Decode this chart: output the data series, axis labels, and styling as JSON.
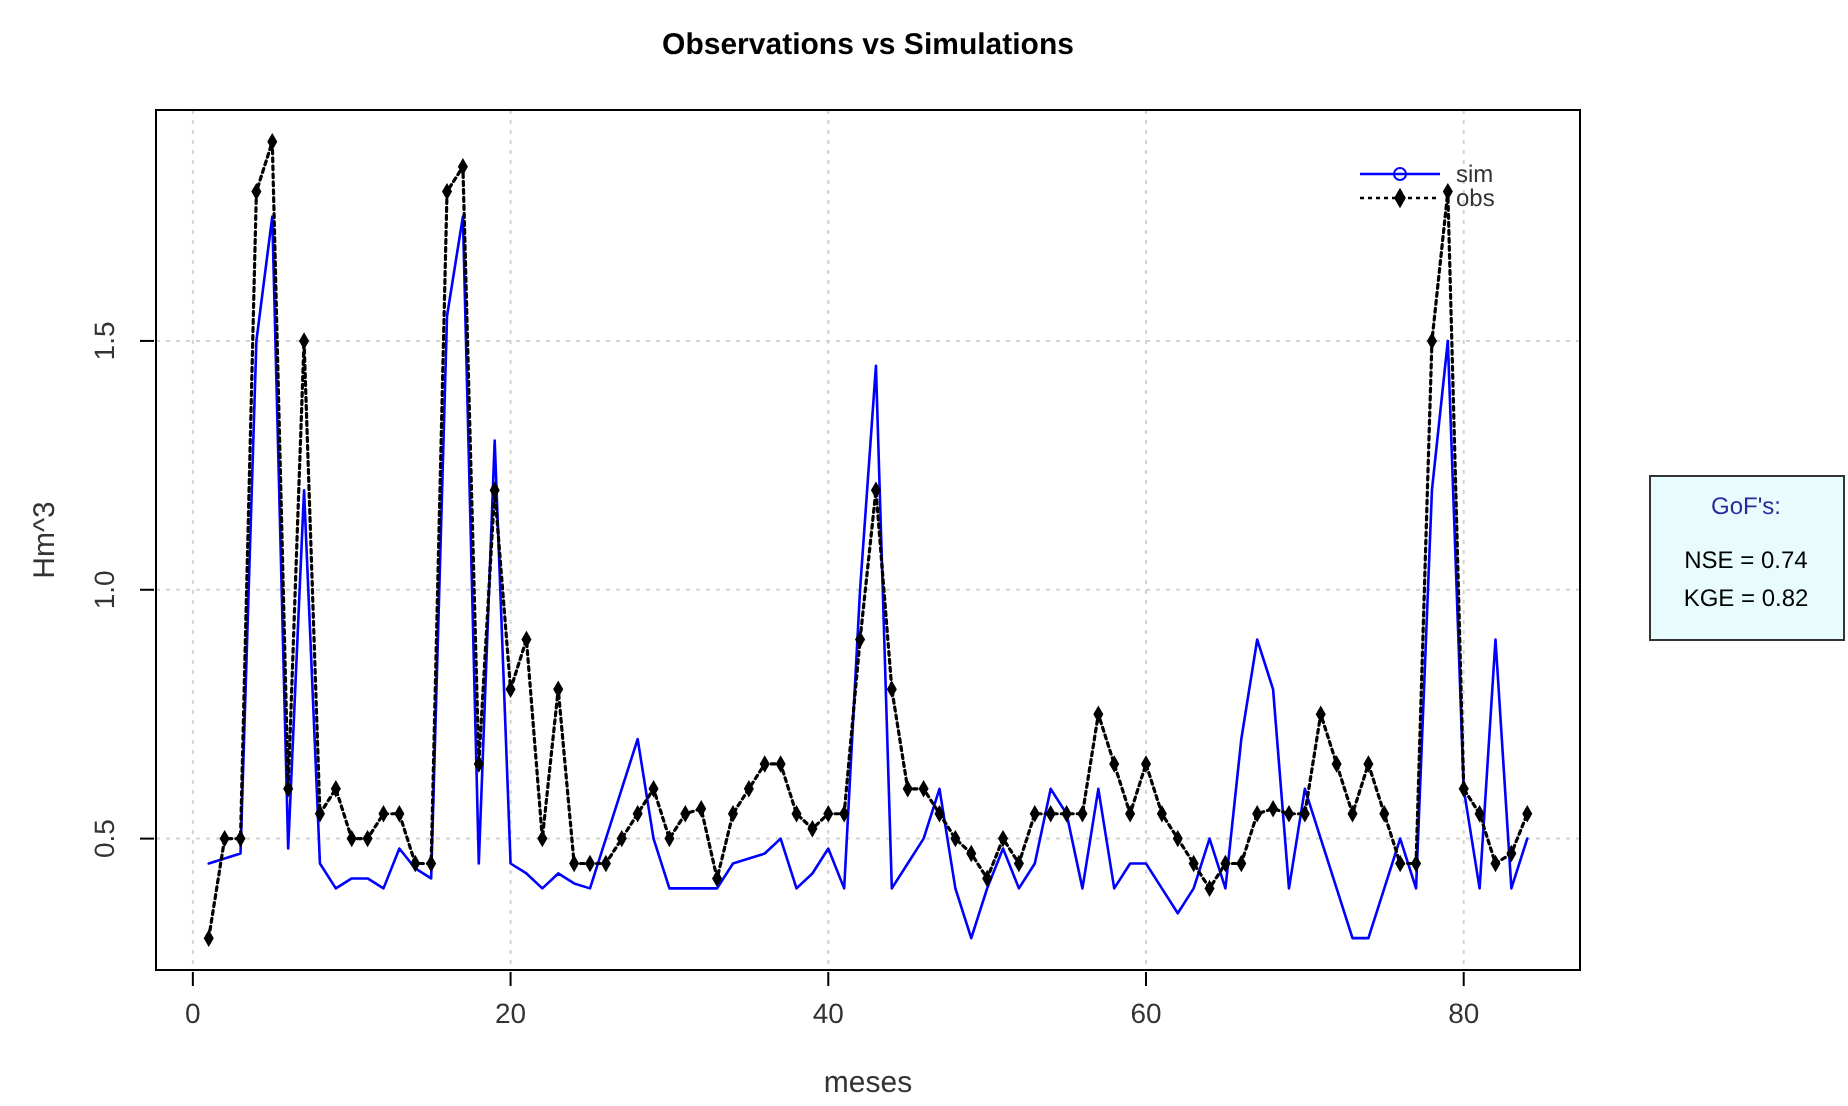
{
  "chart_data": {
    "type": "line",
    "title": "Observations vs Simulations",
    "xlabel": "meses",
    "ylabel": "Hm^3",
    "x": [
      1,
      2,
      3,
      4,
      5,
      6,
      7,
      8,
      9,
      10,
      11,
      12,
      13,
      14,
      15,
      16,
      17,
      18,
      19,
      20,
      21,
      22,
      23,
      24,
      25,
      26,
      27,
      28,
      29,
      30,
      31,
      32,
      33,
      34,
      35,
      36,
      37,
      38,
      39,
      40,
      41,
      42,
      43,
      44,
      45,
      46,
      47,
      48,
      49,
      50,
      51,
      52,
      53,
      54,
      55,
      56,
      57,
      58,
      59,
      60,
      61,
      62,
      63,
      64,
      65,
      66,
      67,
      68,
      69,
      70,
      71,
      72,
      73,
      74,
      75,
      76,
      77,
      78,
      79,
      80,
      81,
      82,
      83,
      84
    ],
    "series": [
      {
        "name": "sim",
        "color": "#0000ff",
        "line_style": "solid",
        "marker": "none",
        "values": [
          0.45,
          0.46,
          0.47,
          1.5,
          1.75,
          0.48,
          1.2,
          0.45,
          0.4,
          0.42,
          0.42,
          0.4,
          0.48,
          0.44,
          0.42,
          1.55,
          1.75,
          0.45,
          1.3,
          0.45,
          0.43,
          0.4,
          0.43,
          0.41,
          0.4,
          0.5,
          0.6,
          0.7,
          0.5,
          0.4,
          0.4,
          0.4,
          0.4,
          0.45,
          0.46,
          0.47,
          0.5,
          0.4,
          0.43,
          0.48,
          0.4,
          1.0,
          1.45,
          0.4,
          0.45,
          0.5,
          0.6,
          0.4,
          0.3,
          0.4,
          0.48,
          0.4,
          0.45,
          0.6,
          0.55,
          0.4,
          0.6,
          0.4,
          0.45,
          0.45,
          0.4,
          0.35,
          0.4,
          0.5,
          0.4,
          0.7,
          0.9,
          0.8,
          0.4,
          0.6,
          0.5,
          0.4,
          0.3,
          0.3,
          0.4,
          0.5,
          0.4,
          1.2,
          1.5,
          0.6,
          0.4,
          0.9,
          0.4,
          0.5
        ]
      },
      {
        "name": "obs",
        "color": "#000000",
        "line_style": "dotted",
        "marker": "diamond",
        "values": [
          0.3,
          0.5,
          0.5,
          1.8,
          1.9,
          0.6,
          1.5,
          0.55,
          0.6,
          0.5,
          0.5,
          0.55,
          0.55,
          0.45,
          0.45,
          1.8,
          1.85,
          0.65,
          1.2,
          0.8,
          0.9,
          0.5,
          0.8,
          0.45,
          0.45,
          0.45,
          0.5,
          0.55,
          0.6,
          0.5,
          0.55,
          0.56,
          0.42,
          0.55,
          0.6,
          0.65,
          0.65,
          0.55,
          0.52,
          0.55,
          0.55,
          0.9,
          1.2,
          0.8,
          0.6,
          0.6,
          0.55,
          0.5,
          0.47,
          0.42,
          0.5,
          0.45,
          0.55,
          0.55,
          0.55,
          0.55,
          0.75,
          0.65,
          0.55,
          0.65,
          0.55,
          0.5,
          0.45,
          0.4,
          0.45,
          0.45,
          0.55,
          0.56,
          0.55,
          0.55,
          0.75,
          0.65,
          0.55,
          0.65,
          0.55,
          0.45,
          0.45,
          1.5,
          1.8,
          0.6,
          0.55,
          0.45,
          0.47,
          0.55
        ]
      }
    ],
    "xlim": [
      -2.32,
      87.32
    ],
    "ylim": [
      0.236,
      1.964
    ],
    "xticks": [
      0,
      20,
      40,
      60,
      80
    ],
    "yticks": [
      0.5,
      {
        "value": 1,
        "label": "1.0"
      },
      1.5
    ],
    "grid": true,
    "legend": "top right",
    "annotations": [
      "GoF's:",
      "NSE = 0.74",
      "KGE = 0.82"
    ]
  }
}
